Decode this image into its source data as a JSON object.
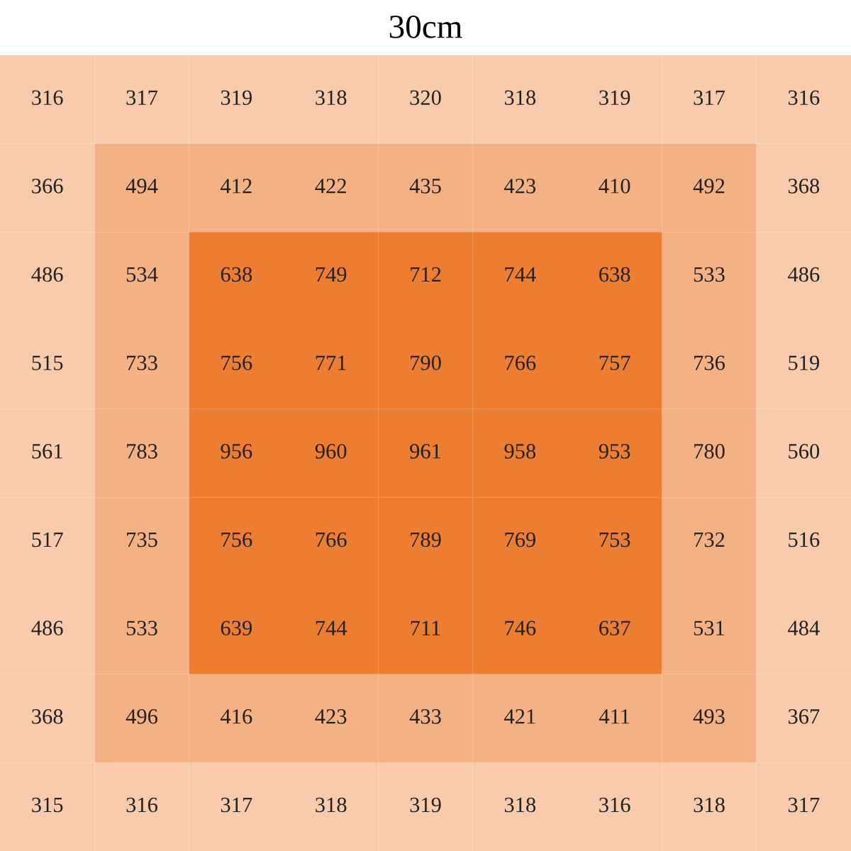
{
  "chart_data": {
    "type": "heatmap",
    "title": "30cm",
    "categories": [
      null,
      null,
      null,
      null,
      null,
      null,
      null,
      null,
      null
    ],
    "y_categories": [
      null,
      null,
      null,
      null,
      null,
      null,
      null,
      null,
      null
    ],
    "colors": [
      "#f8cbad",
      "#f4b183",
      "#ed7d31"
    ],
    "data_labels": true,
    "cells": [
      [
        316,
        317,
        319,
        318,
        320,
        318,
        319,
        317,
        316
      ],
      [
        366,
        494,
        412,
        422,
        435,
        423,
        410,
        492,
        368
      ],
      [
        486,
        534,
        638,
        749,
        712,
        744,
        638,
        533,
        486
      ],
      [
        515,
        733,
        756,
        771,
        790,
        766,
        757,
        736,
        519
      ],
      [
        561,
        783,
        956,
        960,
        961,
        958,
        953,
        780,
        560
      ],
      [
        517,
        735,
        756,
        766,
        789,
        769,
        753,
        732,
        516
      ],
      [
        486,
        533,
        639,
        744,
        711,
        746,
        637,
        531,
        484
      ],
      [
        368,
        496,
        416,
        423,
        433,
        421,
        411,
        493,
        367
      ],
      [
        315,
        316,
        317,
        318,
        319,
        318,
        316,
        318,
        317
      ]
    ]
  }
}
